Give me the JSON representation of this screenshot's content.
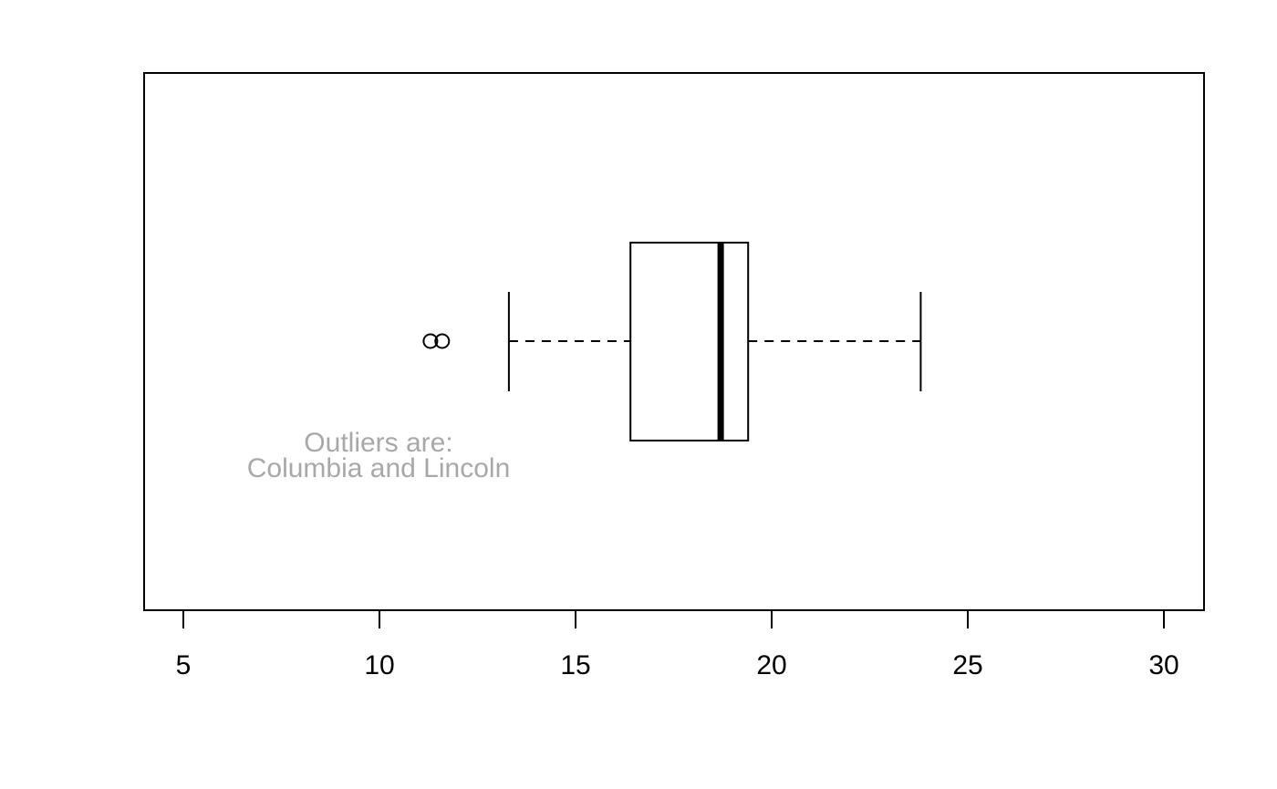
{
  "chart_data": {
    "type": "boxplot",
    "orientation": "horizontal",
    "title": "",
    "xlabel": "",
    "ylabel": "",
    "xlim": [
      4,
      31
    ],
    "ticks": [
      5,
      10,
      15,
      20,
      25,
      30
    ],
    "tick_labels": [
      "5",
      "10",
      "15",
      "20",
      "25",
      "30"
    ],
    "box": {
      "whisker_low": 13.3,
      "q1": 16.4,
      "median": 18.7,
      "q3": 19.4,
      "whisker_high": 23.8
    },
    "outliers": [
      11.3,
      11.6
    ],
    "annotation": {
      "lines": [
        "Outliers are:",
        "Columbia and Lincoln"
      ],
      "color": "#a8a8a8"
    },
    "grid": false,
    "legend": "none"
  }
}
